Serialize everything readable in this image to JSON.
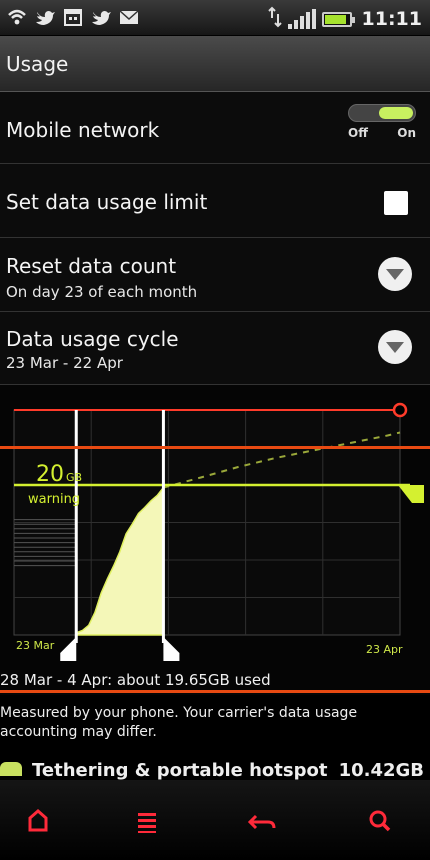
{
  "status_bar": {
    "time": "11:11",
    "left_icons": [
      "wifi-icon",
      "twitter-icon",
      "calendar-icon",
      "twitter-icon",
      "mail-icon"
    ],
    "battery_level": 0.9,
    "accent": "#a6e22e"
  },
  "header": {
    "title": "Usage"
  },
  "settings": {
    "mobile_network": {
      "label": "Mobile network",
      "toggle_off": "Off",
      "toggle_on": "On",
      "enabled": true
    },
    "data_limit": {
      "label": "Set data usage limit",
      "checked": false
    },
    "reset_count": {
      "label": "Reset data count",
      "value": "On day 23 of each month"
    },
    "usage_cycle": {
      "label": "Data usage cycle",
      "value": "23 Mar - 22 Apr"
    }
  },
  "chart_data": {
    "type": "area",
    "title": "",
    "x_labels": [
      "23 Mar",
      "23 Apr"
    ],
    "x_day_range": [
      0,
      31
    ],
    "ylim": [
      0,
      30
    ],
    "warning": {
      "value": "20",
      "unit": "GB",
      "label": "warning",
      "gb": 20
    },
    "limit_gb": 30,
    "selection_days": [
      5,
      12
    ],
    "series": [
      {
        "type": "actual",
        "x": [
          5,
          5.5,
          6,
          6.5,
          7,
          7.5,
          8,
          8.5,
          9,
          9.5,
          10,
          10.5,
          11,
          11.5,
          12
        ],
        "y": [
          0.3,
          0.6,
          1.3,
          3.0,
          5.6,
          7.5,
          9.2,
          11.1,
          13.5,
          14.8,
          16.2,
          17.0,
          17.9,
          18.6,
          19.65
        ]
      },
      {
        "type": "projection",
        "x": [
          12,
          15,
          18,
          21,
          24,
          27,
          30,
          31
        ],
        "y": [
          19.65,
          21.0,
          22.4,
          23.6,
          24.6,
          25.6,
          26.6,
          27.0
        ]
      }
    ],
    "colors": {
      "limit": "#ff3b2a",
      "warning": "#d4f030",
      "fill": "#f4f7b8",
      "grid": "#2f2f2f"
    }
  },
  "used_summary": "28 Mar - 4 Apr: about 19.65GB used",
  "note": "Measured by your phone. Your carrier's data usage accounting may differ.",
  "app_row": {
    "name": "Tethering & portable hotspot",
    "amount": "10.42GB"
  },
  "nav": [
    {
      "name": "home-icon",
      "color": "#ff2a3a"
    },
    {
      "name": "menu-icon",
      "color": "#ff2a3a"
    },
    {
      "name": "back-icon",
      "color": "#ff2a3a"
    },
    {
      "name": "search-icon",
      "color": "#ff2a3a"
    }
  ]
}
